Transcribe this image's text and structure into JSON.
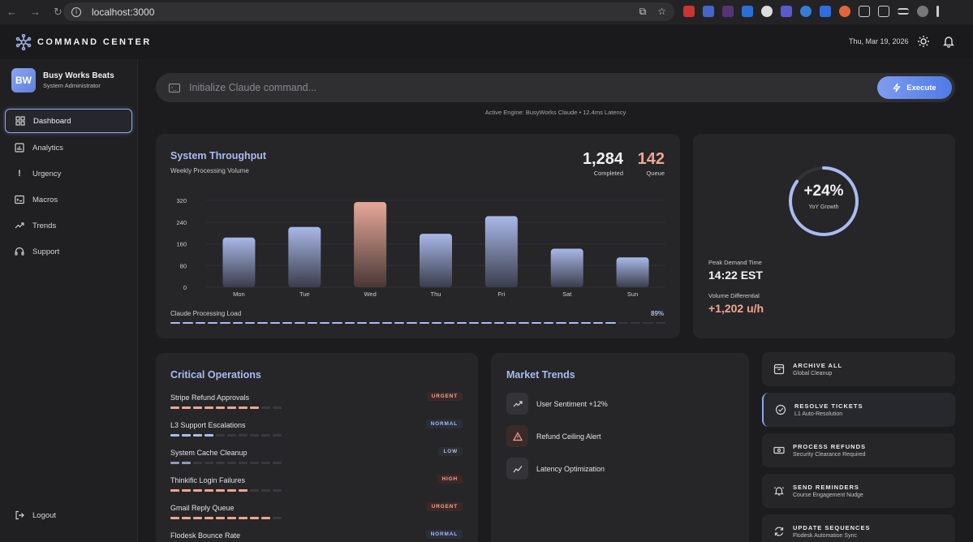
{
  "browser": {
    "url": "localhost:3000"
  },
  "header": {
    "brand": "COMMAND CENTER",
    "date": "Thu, Mar 19, 2026"
  },
  "profile": {
    "initials": "BW",
    "name": "Busy Works Beats",
    "role": "System Administrator"
  },
  "sidebar": {
    "items": [
      {
        "label": "Dashboard",
        "icon": "grid-icon",
        "active": true
      },
      {
        "label": "Analytics",
        "icon": "chart-icon"
      },
      {
        "label": "Urgency",
        "icon": "exclamation-icon"
      },
      {
        "label": "Macros",
        "icon": "terminal-icon"
      },
      {
        "label": "Trends",
        "icon": "trend-up-icon"
      },
      {
        "label": "Support",
        "icon": "headset-icon"
      }
    ],
    "logout": "Logout"
  },
  "command": {
    "placeholder": "Initialize Claude command...",
    "execute_label": "Execute",
    "engine_status": "Active Engine: BusyWorks Claude • 12.4ms Latency"
  },
  "throughput": {
    "title": "System Throughput",
    "subtitle": "Weekly Processing Volume",
    "completed_value": "1,284",
    "completed_label": "Completed",
    "queue_value": "142",
    "queue_label": "Queue",
    "load_label": "Claude Processing Load",
    "load_value": "89%",
    "load_fraction": 0.89
  },
  "chart_data": {
    "type": "bar",
    "categories": [
      "Mon",
      "Tue",
      "Wed",
      "Thu",
      "Fri",
      "Sat",
      "Sun"
    ],
    "values": [
      183,
      222,
      314,
      197,
      262,
      142,
      110
    ],
    "highlight_index": 2,
    "yticks": [
      0,
      80,
      160,
      240,
      320
    ],
    "ylim": [
      0,
      320
    ],
    "title": "System Throughput",
    "xlabel": "",
    "ylabel": ""
  },
  "growth": {
    "value": "+24%",
    "label": "YoY Growth",
    "ring_fraction": 0.85,
    "peak_label": "Peak Demand Time",
    "peak_value": "14:22 EST",
    "diff_label": "Volume Differential",
    "diff_value": "+1,202 u/h"
  },
  "operations": {
    "title": "Critical Operations",
    "items": [
      {
        "name": "Stripe Refund Approvals",
        "badge": "URGENT",
        "level": 8
      },
      {
        "name": "L3 Support Escalations",
        "badge": "NORMAL",
        "level": 4
      },
      {
        "name": "System Cache Cleanup",
        "badge": "LOW",
        "level": 2
      },
      {
        "name": "Thinkific Login Failures",
        "badge": "HIGH",
        "level": 7
      },
      {
        "name": "Gmail Reply Queue",
        "badge": "URGENT",
        "level": 9
      },
      {
        "name": "Flodesk Bounce Rate",
        "badge": "NORMAL",
        "level": 4
      }
    ]
  },
  "market": {
    "title": "Market Trends",
    "items": [
      {
        "label": "User Sentiment +12%",
        "icon": "trend-up-icon"
      },
      {
        "label": "Refund Ceiling Alert",
        "icon": "warning-icon"
      },
      {
        "label": "Latency Optimization",
        "icon": "trend-line-icon"
      }
    ]
  },
  "actions": [
    {
      "title": "ARCHIVE ALL",
      "subtitle": "Global Cleanup",
      "icon": "archive-icon"
    },
    {
      "title": "RESOLVE TICKETS",
      "subtitle": "L1 Auto-Resolution",
      "icon": "check-circle-icon"
    },
    {
      "title": "PROCESS REFUNDS",
      "subtitle": "Security Clearance Required",
      "icon": "banknote-icon"
    },
    {
      "title": "SEND REMINDERS",
      "subtitle": "Course Engagement Nudge",
      "icon": "bell-ring-icon"
    },
    {
      "title": "UPDATE SEQUENCES",
      "subtitle": "Flodesk Automation Sync",
      "icon": "refresh-icon"
    }
  ],
  "colors": {
    "accent": "#a9bbf3",
    "queue": "#f0a592",
    "urgent_text": "#f0a592",
    "urgent_bg": "#3b2826",
    "normal_text": "#a9bbf3",
    "normal_bg": "#2b2e3b",
    "low_text": "#b4bed8",
    "low_bg": "#2c2e35"
  }
}
